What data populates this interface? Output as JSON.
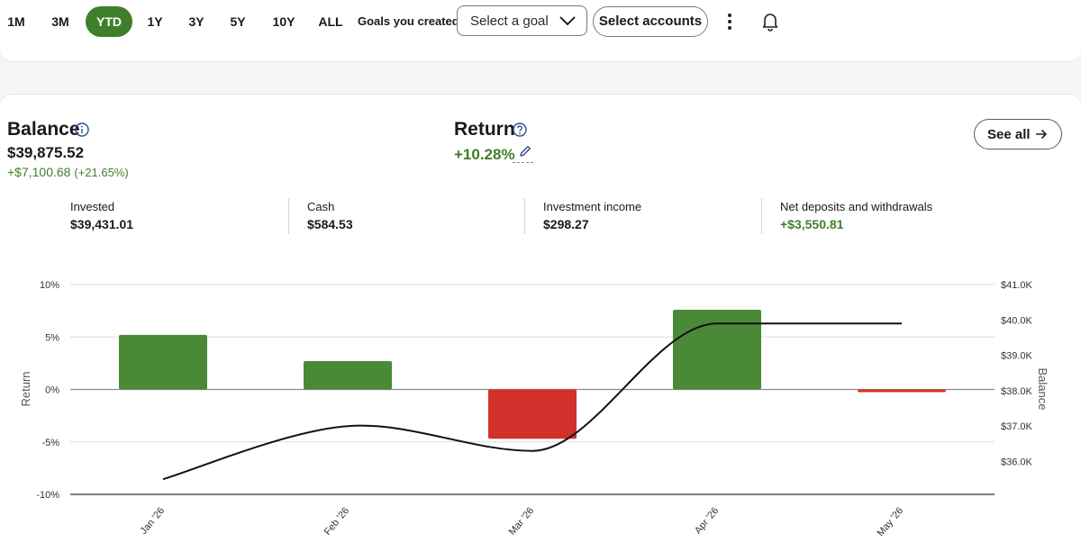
{
  "toolbar": {
    "ranges": [
      "1M",
      "3M",
      "YTD",
      "1Y",
      "3Y",
      "5Y",
      "10Y",
      "ALL"
    ],
    "active_range": "YTD",
    "goals_label": "Goals you created",
    "goal_select": "Select a goal",
    "accounts_button": "Select accounts"
  },
  "summary": {
    "balance_title": "Balance",
    "balance_value": "$39,875.52",
    "balance_change": "+$7,100.68",
    "balance_change_pct": "(+21.65%)",
    "return_title": "Return",
    "return_value": "+10.28%",
    "see_all": "See all"
  },
  "stats": [
    {
      "label": "Invested",
      "value": "$39,431.01"
    },
    {
      "label": "Cash",
      "value": "$584.53"
    },
    {
      "label": "Investment income",
      "value": "$298.27"
    },
    {
      "label": "Net deposits and withdrawals",
      "value": "+$3,550.81"
    }
  ],
  "colors": {
    "accent_green": "#3f7f2c",
    "bar_positive": "#4a8a37",
    "bar_negative": "#d4302b",
    "line": "#111111"
  },
  "chart_data": {
    "type": "bar",
    "categories": [
      "Jan '26",
      "Feb '26",
      "Mar '26",
      "Apr '26",
      "May '26"
    ],
    "series": [
      {
        "name": "Return",
        "axis": "left",
        "type": "bar",
        "values": [
          5.2,
          2.7,
          -4.7,
          7.6,
          -0.2
        ]
      },
      {
        "name": "Balance",
        "axis": "right",
        "type": "line",
        "values": [
          35.5,
          37.0,
          36.3,
          39.9,
          39.9
        ]
      }
    ],
    "ylabel": "Return",
    "y2label": "Balance",
    "ylim": [
      -10,
      10
    ],
    "yticks": [
      "10%",
      "5%",
      "0%",
      "-5%",
      "-10%"
    ],
    "y2lim": [
      35.0,
      41.0
    ],
    "y2ticks": [
      "$41.0K",
      "$40.0K",
      "$39.0K",
      "$38.0K",
      "$37.0K",
      "$36.0K"
    ],
    "grid": true
  }
}
